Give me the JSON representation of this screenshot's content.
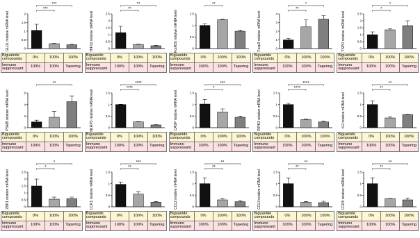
{
  "chart_data": [
    {
      "type": "bar",
      "ylabel": "GLUL relative mRNA level",
      "values": [
        1.05,
        0.28,
        0.22
      ],
      "errors": [
        0.35,
        0.02,
        0.04
      ],
      "colors": [
        "#111111",
        "#a6a6a6",
        "#7f7f7f"
      ],
      "ylim": [
        0,
        2
      ],
      "yticks": [
        0,
        0.5,
        1,
        1.5,
        2
      ],
      "significance": [
        {
          "label": "***",
          "between": [
            0,
            1
          ]
        },
        {
          "label": "***",
          "between": [
            0,
            2
          ]
        }
      ],
      "table": [
        {
          "label": "Biguanide compounds",
          "cells": [
            "0%",
            "100%",
            "100%"
          ]
        },
        {
          "label": "Immuno suppressant",
          "cells": [
            "100%",
            "100%",
            "Tapering"
          ]
        }
      ]
    },
    {
      "type": "bar",
      "ylabel": "HIF1α relative mRNA level",
      "values": [
        1.15,
        0.3,
        0.2
      ],
      "errors": [
        0.45,
        0.02,
        0.03
      ],
      "colors": [
        "#111111",
        "#a6a6a6",
        "#7f7f7f"
      ],
      "ylim": [
        0,
        2.5
      ],
      "yticks": [
        0,
        0.5,
        1,
        1.5,
        2,
        2.5
      ],
      "significance": [
        {
          "label": "**",
          "between": [
            0,
            1
          ]
        },
        {
          "label": "**",
          "between": [
            0,
            2
          ]
        }
      ],
      "table": [
        {
          "label": "Biguanide compounds",
          "cells": [
            "0%",
            "100%",
            "100%"
          ]
        },
        {
          "label": "Immuno suppressant",
          "cells": [
            "100%",
            "100%",
            "Tapering"
          ]
        }
      ]
    },
    {
      "type": "bar",
      "ylabel": "FcεR2b relative mRNA level",
      "values": [
        1.0,
        1.25,
        0.75
      ],
      "errors": [
        0.08,
        0.02,
        0.05
      ],
      "colors": [
        "#111111",
        "#a6a6a6",
        "#7f7f7f"
      ],
      "ylim": [
        0,
        1.5
      ],
      "yticks": [
        0,
        0.5,
        1,
        1.5
      ],
      "significance": [
        {
          "label": "**",
          "between": [
            0,
            1
          ]
        }
      ],
      "table": [
        {
          "label": "Biguanide compounds",
          "cells": [
            "0%",
            "100%",
            "100%"
          ]
        },
        {
          "label": "Immuno suppressant",
          "cells": [
            "100%",
            "100%",
            "Tapering"
          ]
        }
      ]
    },
    {
      "type": "bar",
      "ylabel": "Foxp3 relative mRNA level",
      "values": [
        1.0,
        2.5,
        3.4
      ],
      "errors": [
        0.15,
        0.8,
        0.4
      ],
      "colors": [
        "#111111",
        "#a6a6a6",
        "#7f7f7f"
      ],
      "ylim": [
        0,
        4
      ],
      "yticks": [
        0,
        1,
        2,
        3,
        4
      ],
      "significance": [
        {
          "label": "**",
          "between": [
            0,
            1
          ]
        },
        {
          "label": "*",
          "between": [
            0,
            2
          ]
        }
      ],
      "table": [
        {
          "label": "Biguanide compounds",
          "cells": [
            "0%",
            "100%",
            "100%"
          ]
        },
        {
          "label": "Immuno suppressant",
          "cells": [
            "100%",
            "100%",
            "Tapering"
          ]
        }
      ]
    },
    {
      "type": "bar",
      "ylabel": "TSPO relative mRNA level",
      "values": [
        1.0,
        1.35,
        1.65
      ],
      "errors": [
        0.2,
        0.07,
        0.35
      ],
      "colors": [
        "#111111",
        "#a6a6a6",
        "#7f7f7f"
      ],
      "ylim": [
        0,
        2.5
      ],
      "yticks": [
        0,
        0.5,
        1,
        1.5,
        2,
        2.5
      ],
      "significance": [
        {
          "label": "*",
          "between": [
            0,
            1
          ]
        },
        {
          "label": "*",
          "between": [
            0,
            2
          ]
        }
      ],
      "table": [
        {
          "label": "Biguanide compounds",
          "cells": [
            "0%",
            "100%",
            "100%"
          ]
        },
        {
          "label": "Immuno suppressant",
          "cells": [
            "100%",
            "100%",
            "Tapering"
          ]
        }
      ]
    },
    {
      "type": "bar",
      "ylabel": "PSMB relative mRNA level",
      "values": [
        1.0,
        1.8,
        4.5
      ],
      "errors": [
        0.3,
        1.0,
        1.0
      ],
      "colors": [
        "#111111",
        "#a6a6a6",
        "#7f7f7f"
      ],
      "ylim": [
        0,
        6
      ],
      "yticks": [
        0,
        2,
        4,
        6
      ],
      "significance": [
        {
          "label": "**",
          "between": [
            0,
            2
          ]
        }
      ],
      "table": [
        {
          "label": "Biguanide compounds",
          "cells": [
            "0%",
            "100%",
            "100%"
          ]
        },
        {
          "label": "Immuno suppressant",
          "cells": [
            "100%",
            "100%",
            "Tapering"
          ]
        }
      ]
    },
    {
      "type": "bar",
      "ylabel": "NLRP3 relative mRNA level",
      "values": [
        1.0,
        0.25,
        0.12
      ],
      "errors": [
        0.01,
        0.01,
        0.01
      ],
      "colors": [
        "#111111",
        "#a6a6a6",
        "#7f7f7f"
      ],
      "ylim": [
        0,
        1.5
      ],
      "yticks": [
        0,
        0.5,
        1,
        1.5
      ],
      "significance": [
        {
          "label": "****",
          "between": [
            0,
            1
          ]
        },
        {
          "label": "****",
          "between": [
            0,
            2
          ]
        }
      ],
      "table": [
        {
          "label": "Biguanide compounds",
          "cells": [
            "0%",
            "100%",
            "100%"
          ]
        },
        {
          "label": "Immuno suppressant",
          "cells": [
            "100%",
            "100%",
            "Tapering"
          ]
        }
      ]
    },
    {
      "type": "bar",
      "ylabel": "CASP relative mRNA level",
      "values": [
        1.02,
        0.68,
        0.45
      ],
      "errors": [
        0.2,
        0.13,
        0.05
      ],
      "colors": [
        "#111111",
        "#a6a6a6",
        "#7f7f7f"
      ],
      "ylim": [
        0,
        1.5
      ],
      "yticks": [
        0,
        0.5,
        1,
        1.5
      ],
      "significance": [
        {
          "label": "*",
          "between": [
            0,
            1
          ]
        },
        {
          "label": "***",
          "between": [
            0,
            2
          ]
        }
      ],
      "table": [
        {
          "label": "Biguanide compounds",
          "cells": [
            "0%",
            "100%",
            "100%"
          ]
        },
        {
          "label": "Immuno suppressant",
          "cells": [
            "100%",
            "100%",
            "Tapering"
          ]
        }
      ]
    },
    {
      "type": "bar",
      "ylabel": "RIPK3 relative mRNA level",
      "values": [
        1.0,
        0.35,
        0.25
      ],
      "errors": [
        0.05,
        0.02,
        0.03
      ],
      "colors": [
        "#111111",
        "#a6a6a6",
        "#7f7f7f"
      ],
      "ylim": [
        0,
        1.5
      ],
      "yticks": [
        0,
        0.5,
        1,
        1.5
      ],
      "significance": [
        {
          "label": "****",
          "between": [
            0,
            1
          ]
        },
        {
          "label": "****",
          "between": [
            0,
            2
          ]
        }
      ],
      "table": [
        {
          "label": "Biguanide compounds",
          "cells": [
            "0%",
            "100%",
            "100%"
          ]
        },
        {
          "label": "Immuno suppressant",
          "cells": [
            "100%",
            "100%",
            "Tapering"
          ]
        }
      ]
    },
    {
      "type": "bar",
      "ylabel": "IL2 relative mRNA level",
      "values": [
        1.0,
        0.42,
        0.57
      ],
      "errors": [
        0.15,
        0.04,
        0.01
      ],
      "colors": [
        "#111111",
        "#a6a6a6",
        "#7f7f7f"
      ],
      "ylim": [
        0,
        1.5
      ],
      "yticks": [
        0,
        0.5,
        1,
        1.5
      ],
      "significance": [
        {
          "label": "**",
          "between": [
            0,
            1
          ]
        },
        {
          "label": "**",
          "between": [
            0,
            2
          ]
        }
      ],
      "table": [
        {
          "label": "Biguanide compounds",
          "cells": [
            "0%",
            "100%",
            "100%"
          ]
        },
        {
          "label": "Immuno suppressant",
          "cells": [
            "100%",
            "100%",
            "Tapering"
          ]
        }
      ]
    },
    {
      "type": "bar",
      "ylabel": "ZBP1 relative mRNA level",
      "values": [
        1.5,
        0.55,
        0.58
      ],
      "errors": [
        0.5,
        0.15,
        0.12
      ],
      "colors": [
        "#111111",
        "#a6a6a6",
        "#7f7f7f"
      ],
      "ylim": [
        0,
        2.5
      ],
      "yticks": [
        0,
        0.5,
        1,
        1.5,
        2,
        2.5
      ],
      "significance": [
        {
          "label": "*",
          "between": [
            0,
            1
          ]
        },
        {
          "label": "*",
          "between": [
            0,
            2
          ]
        }
      ],
      "table": [
        {
          "label": "Biguanide compounds",
          "cells": [
            "0%",
            "100%",
            "100%"
          ]
        },
        {
          "label": "Immuno suppressant",
          "cells": [
            "100%",
            "100%",
            "Tapering"
          ]
        }
      ]
    },
    {
      "type": "bar",
      "ylabel": "CCR1 relative mRNA level",
      "values": [
        0.97,
        0.55,
        0.2
      ],
      "errors": [
        0.1,
        0.1,
        0.03
      ],
      "colors": [
        "#111111",
        "#a6a6a6",
        "#7f7f7f"
      ],
      "ylim": [
        0,
        1.5
      ],
      "yticks": [
        0,
        0.5,
        1,
        1.5
      ],
      "significance": [
        {
          "label": "**",
          "between": [
            0,
            1
          ]
        },
        {
          "label": "***",
          "between": [
            0,
            2
          ]
        }
      ],
      "table": [
        {
          "label": "Biguanide compounds",
          "cells": [
            "0%",
            "100%",
            "100%"
          ]
        },
        {
          "label": "Immuno suppressant",
          "cells": [
            "100%",
            "100%",
            "Tapering"
          ]
        }
      ]
    },
    {
      "type": "bar",
      "ylabel": "CCL2 relative mRNA level",
      "values": [
        1.0,
        0.3,
        0.22
      ],
      "errors": [
        0.25,
        0.05,
        0.03
      ],
      "colors": [
        "#111111",
        "#a6a6a6",
        "#7f7f7f"
      ],
      "ylim": [
        0,
        1.5
      ],
      "yticks": [
        0,
        0.5,
        1,
        1.5
      ],
      "significance": [
        {
          "label": "**",
          "between": [
            0,
            1
          ]
        },
        {
          "label": "**",
          "between": [
            0,
            2
          ]
        }
      ],
      "table": [
        {
          "label": "Biguanide compounds",
          "cells": [
            "0%",
            "100%",
            "100%"
          ]
        },
        {
          "label": "Immuno suppressant",
          "cells": [
            "100%",
            "100%",
            "Tapering"
          ]
        }
      ]
    },
    {
      "type": "bar",
      "ylabel": "CCL3 relative mRNA level",
      "values": [
        1.0,
        0.2,
        0.18
      ],
      "errors": [
        0.25,
        0.03,
        0.06
      ],
      "colors": [
        "#111111",
        "#a6a6a6",
        "#7f7f7f"
      ],
      "ylim": [
        0,
        1.5
      ],
      "yticks": [
        0,
        0.5,
        1,
        1.5
      ],
      "significance": [
        {
          "label": "**",
          "between": [
            0,
            1
          ]
        },
        {
          "label": "**",
          "between": [
            0,
            2
          ]
        }
      ],
      "table": [
        {
          "label": "Biguanide compounds",
          "cells": [
            "0%",
            "100%",
            "100%"
          ]
        },
        {
          "label": "Immuno suppressant",
          "cells": [
            "100%",
            "100%",
            "Tapering"
          ]
        }
      ]
    },
    {
      "type": "bar",
      "ylabel": "CCR5 relative mRNA level",
      "values": [
        1.0,
        0.35,
        0.3
      ],
      "errors": [
        0.25,
        0.01,
        0.08
      ],
      "colors": [
        "#111111",
        "#a6a6a6",
        "#7f7f7f"
      ],
      "ylim": [
        0,
        1.5
      ],
      "yticks": [
        0,
        0.5,
        1,
        1.5
      ],
      "significance": [
        {
          "label": "**",
          "between": [
            0,
            1
          ]
        },
        {
          "label": "**",
          "between": [
            0,
            2
          ]
        }
      ],
      "table": [
        {
          "label": "Biguanide compounds",
          "cells": [
            "0%",
            "100%",
            "100%"
          ]
        },
        {
          "label": "Immuno suppressant",
          "cells": [
            "100%",
            "100%",
            "Tapering"
          ]
        }
      ]
    }
  ]
}
